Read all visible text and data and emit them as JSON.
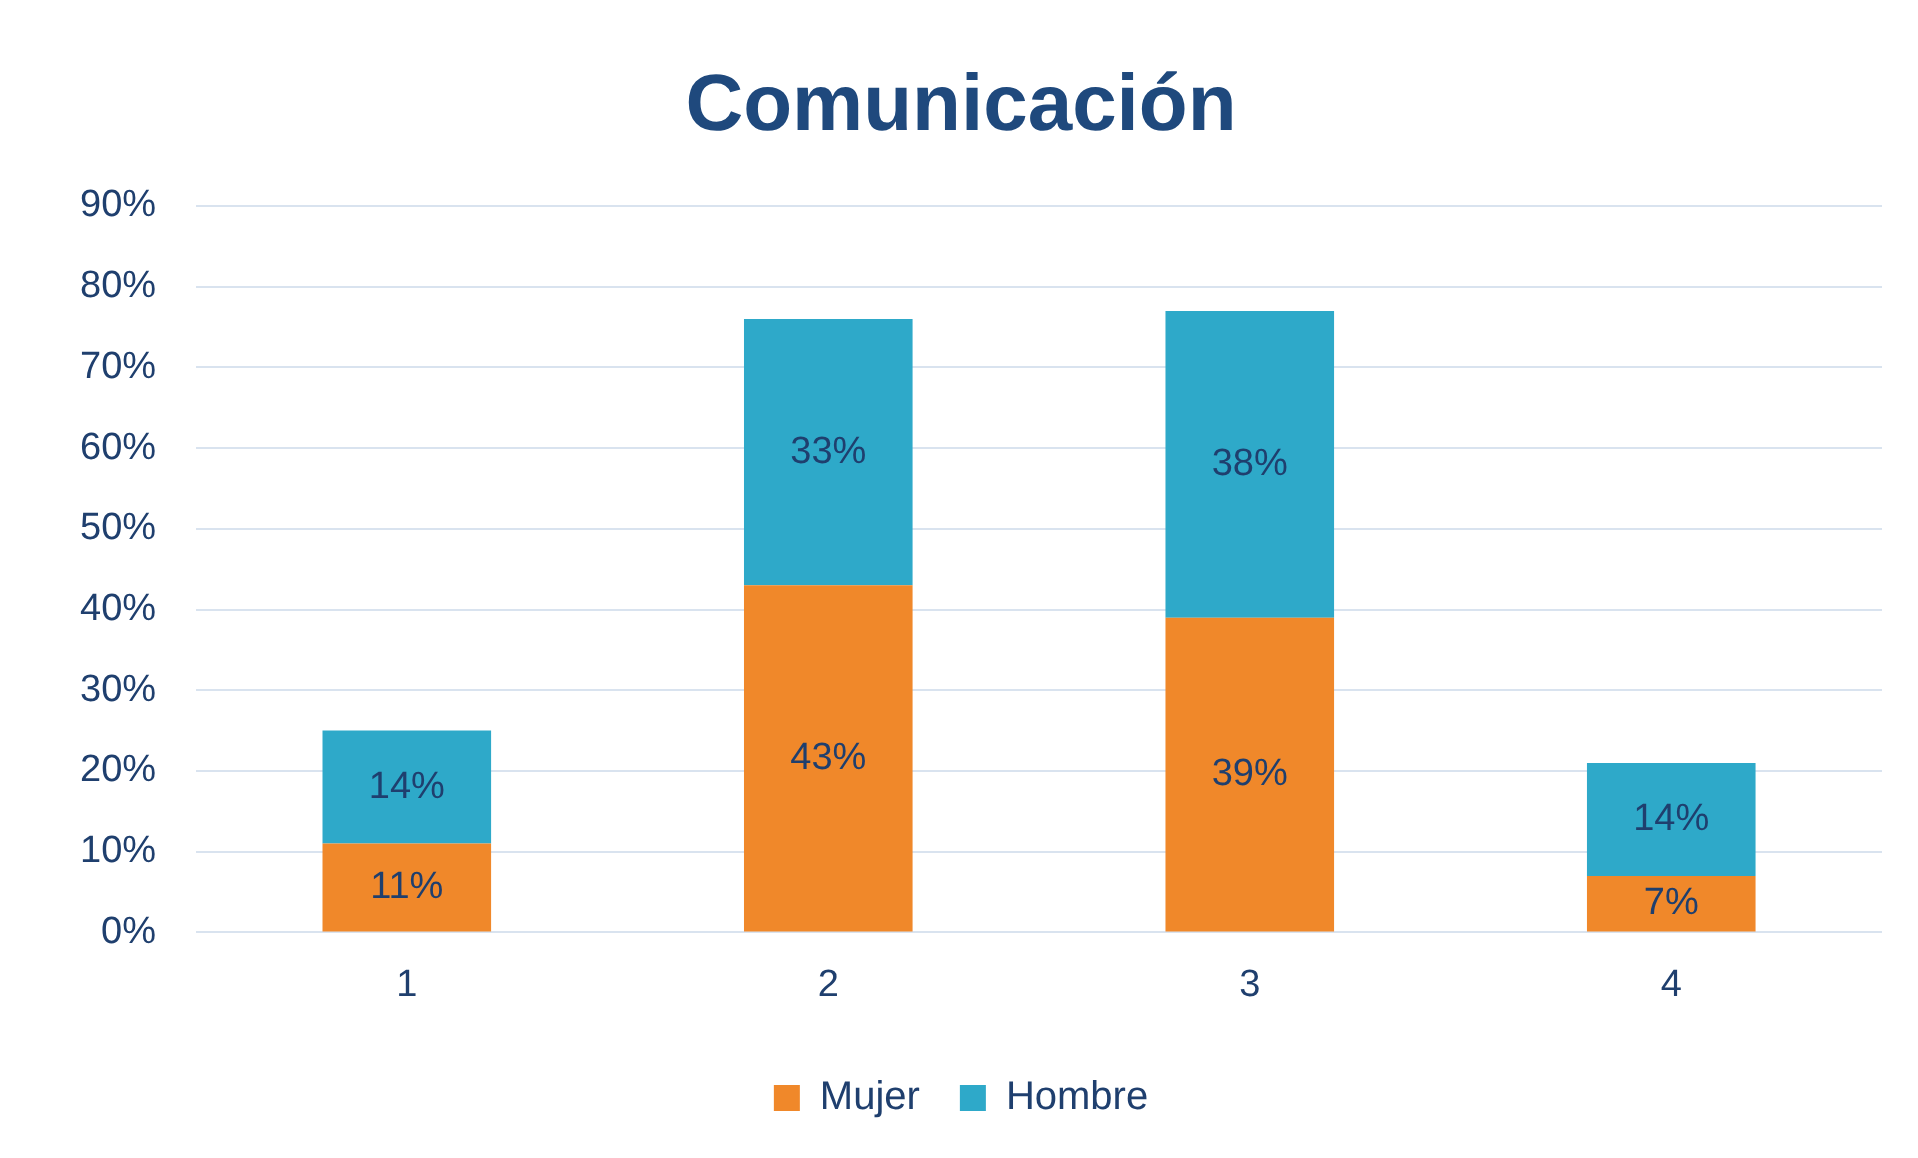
{
  "chart_data": {
    "type": "bar",
    "title": "Comunicación",
    "categories": [
      "1",
      "2",
      "3",
      "4"
    ],
    "stacked": true,
    "series": [
      {
        "name": "Mujer",
        "color": "#f0882a",
        "values": [
          11,
          43,
          39,
          7
        ],
        "value_labels": [
          "11%",
          "43%",
          "39%",
          "7%"
        ]
      },
      {
        "name": "Hombre",
        "color": "#2ea9c9",
        "values": [
          14,
          33,
          38,
          14
        ],
        "value_labels": [
          "14%",
          "33%",
          "38%",
          "14%"
        ]
      }
    ],
    "ylim": [
      0,
      90
    ],
    "yticks": [
      {
        "value": 0,
        "label": "0%"
      },
      {
        "value": 10,
        "label": "10%"
      },
      {
        "value": 20,
        "label": "20%"
      },
      {
        "value": 30,
        "label": "30%"
      },
      {
        "value": 40,
        "label": "40%"
      },
      {
        "value": 50,
        "label": "50%"
      },
      {
        "value": 60,
        "label": "60%"
      },
      {
        "value": 70,
        "label": "70%"
      },
      {
        "value": 80,
        "label": "80%"
      },
      {
        "value": 90,
        "label": "90%"
      }
    ],
    "grid": "y",
    "legend": "bottom"
  }
}
